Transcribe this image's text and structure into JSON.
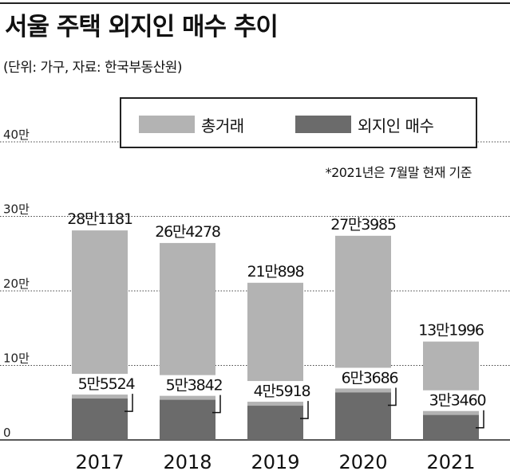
{
  "title": "서울 주택 외지인 매수 추이",
  "subtitle": "(단위: 가구, 자료: 한국부동산원)",
  "note": "*2021년은 7월말 현재 기준",
  "colors": {
    "total": "#b3b3b3",
    "outsider": "#6b6b6b",
    "grid": "#444444",
    "text": "#111111"
  },
  "chart_data": {
    "type": "bar",
    "categories": [
      "2017",
      "2018",
      "2019",
      "2020",
      "2021"
    ],
    "series": [
      {
        "name": "총거래",
        "values": [
          281181,
          264278,
          210898,
          273985,
          131996
        ],
        "labels": [
          "28만1181",
          "26만4278",
          "21만898",
          "27만3985",
          "13만1996"
        ]
      },
      {
        "name": "외지인 매수",
        "values": [
          55524,
          53842,
          45918,
          63686,
          33460
        ],
        "labels": [
          "5만5524",
          "5만3842",
          "4만5918",
          "6만3686",
          "3만3460"
        ]
      }
    ],
    "y_ticks": [
      {
        "value": 0,
        "label": "0"
      },
      {
        "value": 100000,
        "label": "10만"
      },
      {
        "value": 200000,
        "label": "20만"
      },
      {
        "value": 300000,
        "label": "30만"
      },
      {
        "value": 400000,
        "label": "40만"
      }
    ],
    "ylim": [
      0,
      400000
    ],
    "grid": true,
    "legend_position": "top"
  }
}
